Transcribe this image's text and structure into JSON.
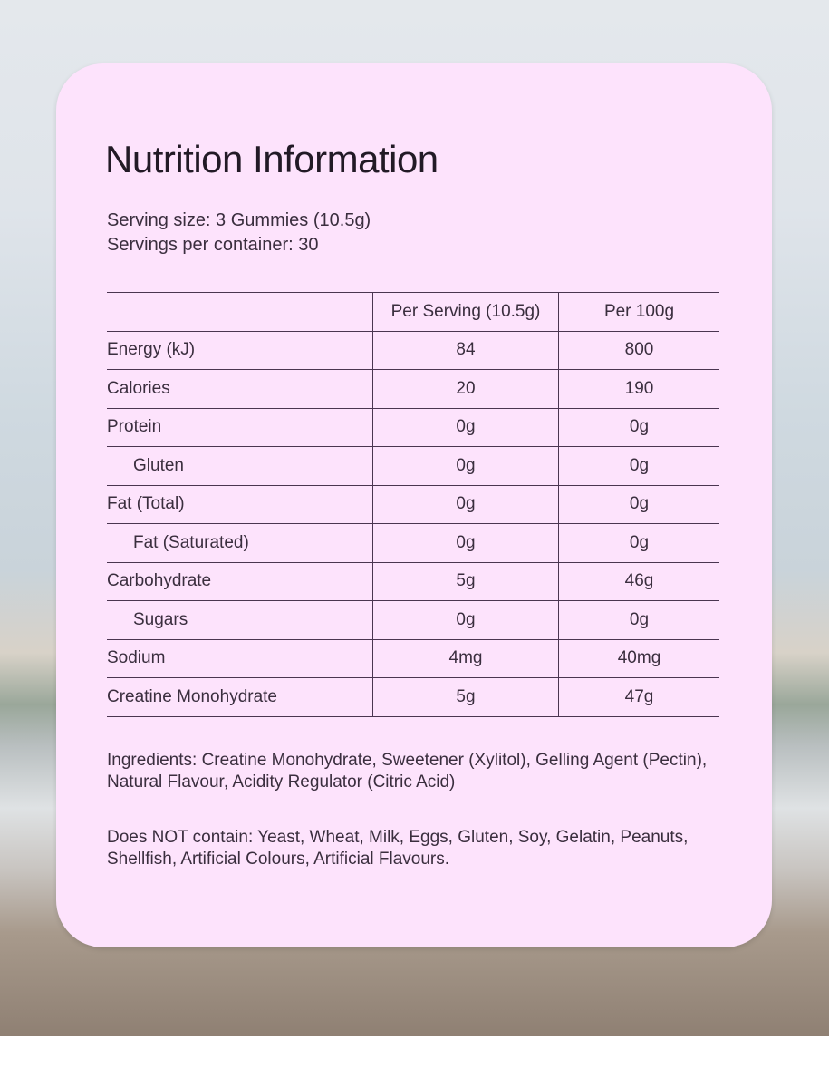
{
  "title": "Nutrition Information",
  "serving_size": "Serving size: 3 Gummies (10.5g)",
  "servings_per_container": "Servings per container: 30",
  "table": {
    "headers": [
      "",
      "Per Serving (10.5g)",
      "Per 100g"
    ],
    "rows": [
      {
        "name": "Energy (kJ)",
        "per_serving": "84",
        "per_100g": "800",
        "sub": false
      },
      {
        "name": "Calories",
        "per_serving": "20",
        "per_100g": "190",
        "sub": false
      },
      {
        "name": "Protein",
        "per_serving": "0g",
        "per_100g": "0g",
        "sub": false
      },
      {
        "name": "Gluten",
        "per_serving": "0g",
        "per_100g": "0g",
        "sub": true
      },
      {
        "name": "Fat (Total)",
        "per_serving": "0g",
        "per_100g": "0g",
        "sub": false
      },
      {
        "name": "Fat (Saturated)",
        "per_serving": "0g",
        "per_100g": "0g",
        "sub": true
      },
      {
        "name": "Carbohydrate",
        "per_serving": "5g",
        "per_100g": "46g",
        "sub": false
      },
      {
        "name": "Sugars",
        "per_serving": "0g",
        "per_100g": "0g",
        "sub": true
      },
      {
        "name": "Sodium",
        "per_serving": "4mg",
        "per_100g": "40mg",
        "sub": false
      },
      {
        "name": "Creatine Monohydrate",
        "per_serving": "5g",
        "per_100g": "47g",
        "sub": false
      }
    ]
  },
  "ingredients": "Ingredients: Creatine Monohydrate, Sweetener (Xylitol), Gelling Agent (Pectin), Natural Flavour, Acidity Regulator (Citric Acid)",
  "does_not_contain": "Does NOT contain: Yeast, Wheat, Milk, Eggs, Gluten, Soy, Gelatin, Peanuts, Shellfish, Artificial Colours, Artificial Flavours.",
  "colors": {
    "card": "#fde3fc",
    "text": "#2a1f2e",
    "rule": "#4a3550"
  }
}
